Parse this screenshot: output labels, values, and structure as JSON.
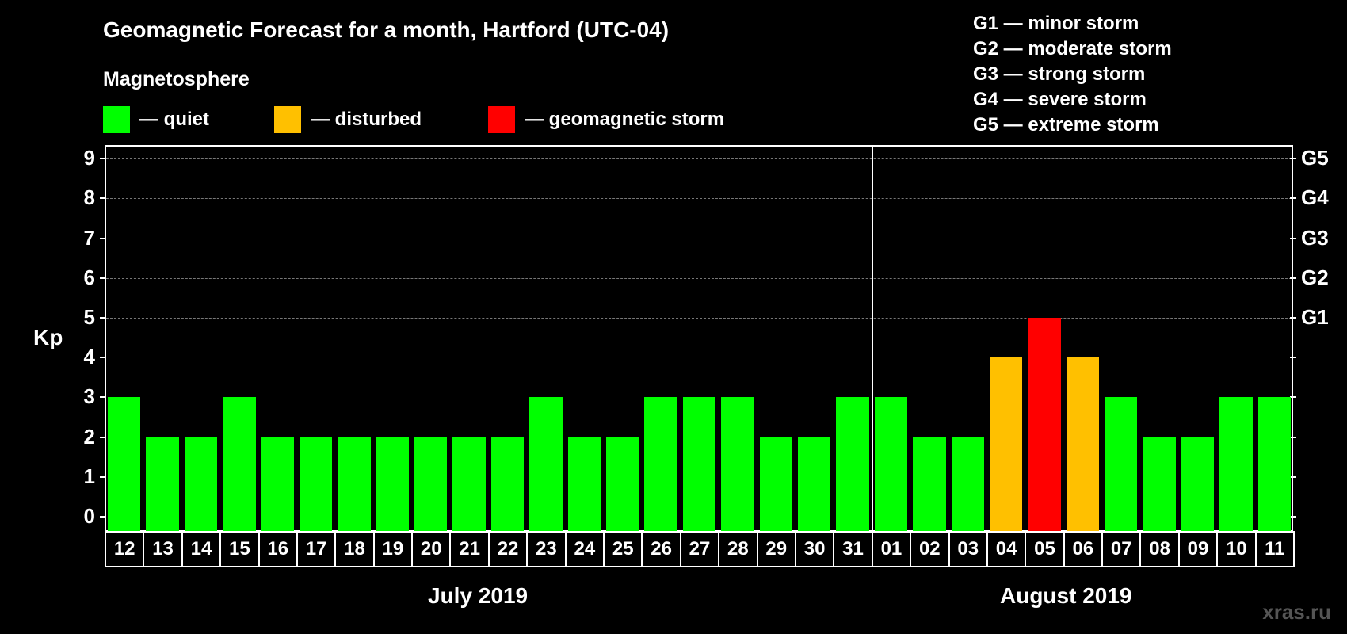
{
  "header": {
    "title": "Geomagnetic Forecast for a month, Hartford (UTC-04)",
    "section_label": "Magnetosphere",
    "legend": [
      {
        "label": "— quiet",
        "color": "#00ff00"
      },
      {
        "label": "— disturbed",
        "color": "#ffc000"
      },
      {
        "label": "— geomagnetic storm",
        "color": "#ff0000"
      }
    ],
    "storm_levels": [
      "G1 — minor storm",
      "G2 — moderate storm",
      "G3 — strong storm",
      "G4 — severe storm",
      "G5 — extreme storm"
    ]
  },
  "axis": {
    "ylabel": "Kp",
    "yticks": [
      "0",
      "1",
      "2",
      "3",
      "4",
      "5",
      "6",
      "7",
      "8",
      "9"
    ],
    "right_ticks": [
      {
        "kp": 5,
        "label": "G1"
      },
      {
        "kp": 6,
        "label": "G2"
      },
      {
        "kp": 7,
        "label": "G3"
      },
      {
        "kp": 8,
        "label": "G4"
      },
      {
        "kp": 9,
        "label": "G5"
      }
    ],
    "months": [
      "July 2019",
      "August 2019"
    ]
  },
  "watermark": "xras.ru",
  "chart_data": {
    "type": "bar",
    "title": "Geomagnetic Forecast for a month, Hartford (UTC-04)",
    "xlabel": "",
    "ylabel": "Kp",
    "ylim": [
      0,
      9
    ],
    "grid": true,
    "categories": [
      "12",
      "13",
      "14",
      "15",
      "16",
      "17",
      "18",
      "19",
      "20",
      "21",
      "22",
      "23",
      "24",
      "25",
      "26",
      "27",
      "28",
      "29",
      "30",
      "31",
      "01",
      "02",
      "03",
      "04",
      "05",
      "06",
      "07",
      "08",
      "09",
      "10",
      "11"
    ],
    "months": [
      {
        "name": "July 2019",
        "days": 20
      },
      {
        "name": "August 2019",
        "days": 11
      }
    ],
    "values": [
      3,
      2,
      2,
      3,
      2,
      2,
      2,
      2,
      2,
      2,
      2,
      3,
      2,
      2,
      3,
      3,
      3,
      2,
      2,
      3,
      3,
      2,
      2,
      4,
      5,
      4,
      3,
      2,
      2,
      3,
      3
    ],
    "color_rule": {
      "quiet": "#00ff00 (<4)",
      "disturbed": "#ffc000 (4)",
      "storm": "#ff0000 (>=5)"
    },
    "legend": [
      "quiet",
      "disturbed",
      "geomagnetic storm"
    ]
  }
}
